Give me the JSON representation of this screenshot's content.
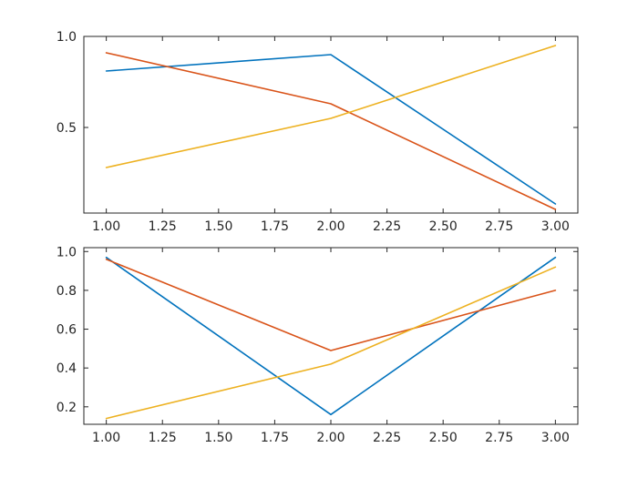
{
  "chart_data": [
    {
      "type": "line",
      "title": "",
      "xlabel": "",
      "ylabel": "",
      "xlim": [
        0.9,
        3.1
      ],
      "ylim": [
        0.03,
        1.0
      ],
      "xticks": [
        1.0,
        1.25,
        1.5,
        1.75,
        2.0,
        2.25,
        2.5,
        2.75,
        3.0
      ],
      "xtick_labels": [
        "1.00",
        "1.25",
        "1.50",
        "1.75",
        "2.00",
        "2.25",
        "2.50",
        "2.75",
        "3.00"
      ],
      "yticks": [
        0.5,
        1.0
      ],
      "ytick_labels": [
        "0.5",
        "1.0"
      ],
      "grid": false,
      "x": [
        1,
        2,
        3
      ],
      "series": [
        {
          "values": [
            0.81,
            0.9,
            0.08
          ],
          "color": "#0072BD"
        },
        {
          "values": [
            0.91,
            0.63,
            0.05
          ],
          "color": "#D95319"
        },
        {
          "values": [
            0.28,
            0.55,
            0.95
          ],
          "color": "#EDB120"
        }
      ]
    },
    {
      "type": "line",
      "title": "",
      "xlabel": "",
      "ylabel": "",
      "xlim": [
        0.9,
        3.1
      ],
      "ylim": [
        0.11,
        1.02
      ],
      "xticks": [
        1.0,
        1.25,
        1.5,
        1.75,
        2.0,
        2.25,
        2.5,
        2.75,
        3.0
      ],
      "xtick_labels": [
        "1.00",
        "1.25",
        "1.50",
        "1.75",
        "2.00",
        "2.25",
        "2.50",
        "2.75",
        "3.00"
      ],
      "yticks": [
        0.2,
        0.4,
        0.6,
        0.8,
        1.0
      ],
      "ytick_labels": [
        "0.2",
        "0.4",
        "0.6",
        "0.8",
        "1.0"
      ],
      "grid": false,
      "x": [
        1,
        2,
        3
      ],
      "series": [
        {
          "values": [
            0.97,
            0.16,
            0.97
          ],
          "color": "#0072BD"
        },
        {
          "values": [
            0.96,
            0.49,
            0.8
          ],
          "color": "#D95319"
        },
        {
          "values": [
            0.14,
            0.42,
            0.92
          ],
          "color": "#EDB120"
        }
      ]
    }
  ]
}
